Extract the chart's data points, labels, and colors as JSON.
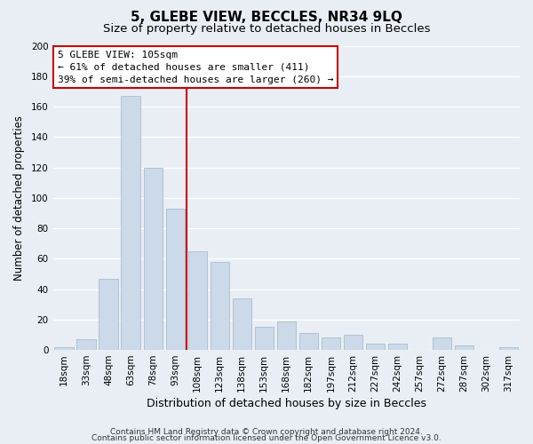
{
  "title": "5, GLEBE VIEW, BECCLES, NR34 9LQ",
  "subtitle": "Size of property relative to detached houses in Beccles",
  "xlabel": "Distribution of detached houses by size in Beccles",
  "ylabel": "Number of detached properties",
  "bar_labels": [
    "18sqm",
    "33sqm",
    "48sqm",
    "63sqm",
    "78sqm",
    "93sqm",
    "108sqm",
    "123sqm",
    "138sqm",
    "153sqm",
    "168sqm",
    "182sqm",
    "197sqm",
    "212sqm",
    "227sqm",
    "242sqm",
    "257sqm",
    "272sqm",
    "287sqm",
    "302sqm",
    "317sqm"
  ],
  "bar_values": [
    2,
    7,
    47,
    167,
    120,
    93,
    65,
    58,
    34,
    15,
    19,
    11,
    8,
    10,
    4,
    4,
    0,
    8,
    3,
    0,
    2
  ],
  "bar_color": "#ccd9e8",
  "bar_edge_color": "#a8bdd0",
  "vline_index": 6,
  "vline_color": "#cc0000",
  "annotation_title": "5 GLEBE VIEW: 105sqm",
  "annotation_line1": "← 61% of detached houses are smaller (411)",
  "annotation_line2": "39% of semi-detached houses are larger (260) →",
  "annotation_box_color": "#ffffff",
  "annotation_box_edge": "#cc0000",
  "ylim": [
    0,
    200
  ],
  "yticks": [
    0,
    20,
    40,
    60,
    80,
    100,
    120,
    140,
    160,
    180,
    200
  ],
  "footer1": "Contains HM Land Registry data © Crown copyright and database right 2024.",
  "footer2": "Contains public sector information licensed under the Open Government Licence v3.0.",
  "bg_color": "#e8eef4",
  "plot_bg_color": "#e8eef4",
  "grid_color": "#ffffff",
  "title_fontsize": 11,
  "subtitle_fontsize": 9.5,
  "xlabel_fontsize": 9,
  "ylabel_fontsize": 8.5,
  "tick_fontsize": 7.5,
  "annotation_fontsize": 8,
  "footer_fontsize": 6.5
}
